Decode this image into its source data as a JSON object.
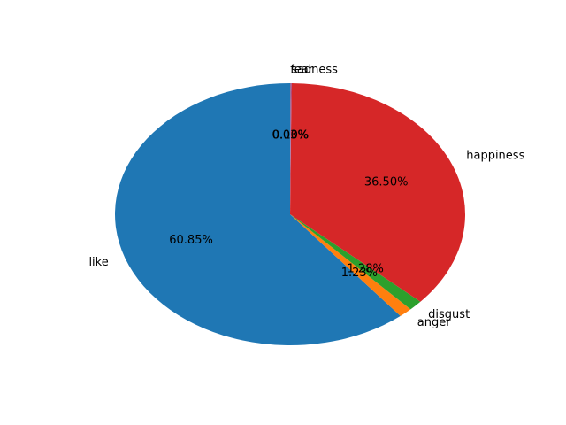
{
  "chart_data": {
    "type": "pie",
    "title": "",
    "slices": [
      {
        "label": "like",
        "value": 60.85,
        "pct_label": "60.85%",
        "color": "#1f77b4"
      },
      {
        "label": "anger",
        "value": 1.23,
        "pct_label": "1.23%",
        "color": "#ff7f0e"
      },
      {
        "label": "disgust",
        "value": 1.28,
        "pct_label": "1.28%",
        "color": "#2ca02c"
      },
      {
        "label": "happiness",
        "value": 36.5,
        "pct_label": "36.50%",
        "color": "#d62728"
      },
      {
        "label": "sadness",
        "value": 0.1,
        "pct_label": "0.10%",
        "color": "#9467bd"
      },
      {
        "label": "fear",
        "value": 0.03,
        "pct_label": "0.03%",
        "color": "#8c564b"
      }
    ],
    "start_angle_deg": 90,
    "direction": "counterclockwise",
    "legend": "none"
  }
}
